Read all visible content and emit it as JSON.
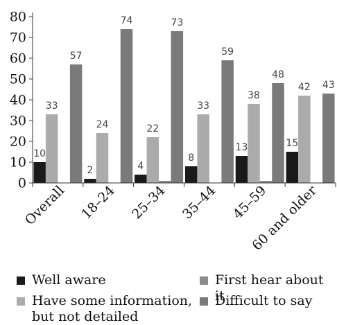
{
  "chart_data": {
    "type": "bar",
    "categories": [
      "Overall",
      "18–24",
      "25–34",
      "35–44",
      "45–59",
      "60 and older"
    ],
    "series": [
      {
        "name": "Well aware",
        "color": "#1a1a1a",
        "values": [
          10,
          2,
          4,
          8,
          13,
          15
        ],
        "labels": [
          "10",
          "2",
          "4",
          "8",
          "13",
          "15"
        ]
      },
      {
        "name": "Have some information,\nbut not detailed",
        "color": "#ababab",
        "values": [
          33,
          24,
          22,
          33,
          38,
          42
        ],
        "labels": [
          "33",
          "24",
          "22",
          "33",
          "38",
          "42"
        ]
      },
      {
        "name": "First hear about it",
        "color": "#8c8c8c",
        "values": [
          0,
          0,
          1,
          0,
          1,
          0
        ],
        "labels": [
          "",
          "",
          "",
          "",
          "",
          ""
        ]
      },
      {
        "name": "Difficult to say",
        "color": "#7a7a7a",
        "values": [
          57,
          74,
          73,
          59,
          48,
          43
        ],
        "labels": [
          "57",
          "74",
          "73",
          "59",
          "48",
          "43"
        ]
      }
    ],
    "y_ticks": [
      "0",
      "10",
      "20",
      "30",
      "40",
      "50",
      "60",
      "70",
      "80"
    ],
    "ylim": [
      0,
      80
    ],
    "legend_position": "bottom",
    "grid": false
  }
}
